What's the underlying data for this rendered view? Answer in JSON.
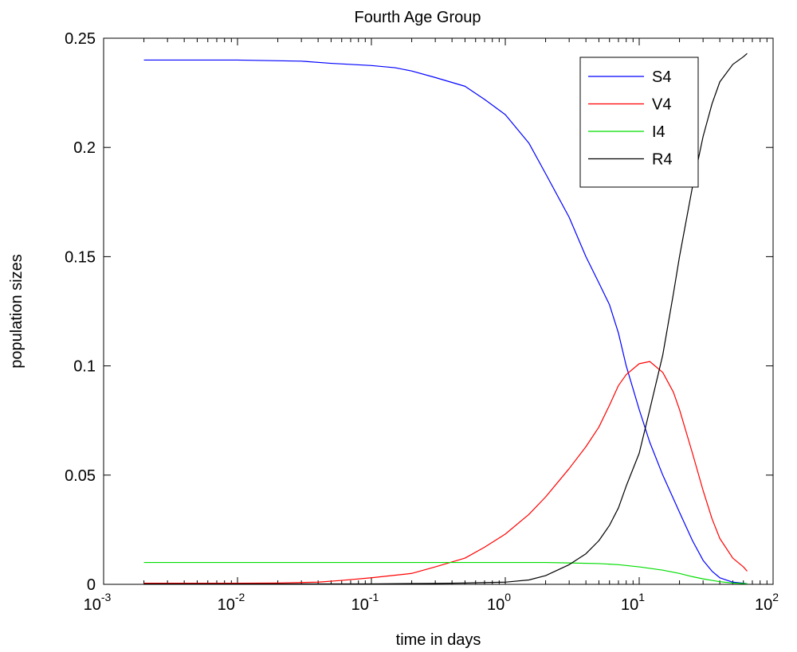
{
  "chart_data": {
    "type": "line",
    "title": "Fourth Age Group",
    "xlabel": "time in days",
    "ylabel": "population sizes",
    "xscale": "log",
    "xlim": [
      0.001,
      100
    ],
    "ylim": [
      0,
      0.25
    ],
    "x_ticks": [
      {
        "base": "10",
        "exp": "-3",
        "value": 0.001
      },
      {
        "base": "10",
        "exp": "-2",
        "value": 0.01
      },
      {
        "base": "10",
        "exp": "-1",
        "value": 0.1
      },
      {
        "base": "10",
        "exp": "0",
        "value": 1
      },
      {
        "base": "10",
        "exp": "1",
        "value": 10
      },
      {
        "base": "10",
        "exp": "2",
        "value": 100
      }
    ],
    "y_ticks": [
      {
        "label": "0",
        "value": 0
      },
      {
        "label": "0.05",
        "value": 0.05
      },
      {
        "label": "0.1",
        "value": 0.1
      },
      {
        "label": "0.15",
        "value": 0.15
      },
      {
        "label": "0.2",
        "value": 0.2
      },
      {
        "label": "0.25",
        "value": 0.25
      }
    ],
    "grid": false,
    "legend_position": "top-right",
    "series": [
      {
        "name": "S4",
        "color": "#0000ff",
        "points": [
          [
            0.002,
            0.24
          ],
          [
            0.01,
            0.24
          ],
          [
            0.03,
            0.2395
          ],
          [
            0.05,
            0.2385
          ],
          [
            0.1,
            0.2375
          ],
          [
            0.15,
            0.2365
          ],
          [
            0.2,
            0.235
          ],
          [
            0.3,
            0.232
          ],
          [
            0.5,
            0.228
          ],
          [
            0.7,
            0.222
          ],
          [
            1,
            0.215
          ],
          [
            1.5,
            0.202
          ],
          [
            2,
            0.188
          ],
          [
            3,
            0.168
          ],
          [
            4,
            0.15
          ],
          [
            5,
            0.138
          ],
          [
            6,
            0.128
          ],
          [
            7,
            0.115
          ],
          [
            8,
            0.1
          ],
          [
            10,
            0.08
          ],
          [
            12,
            0.065
          ],
          [
            15,
            0.05
          ],
          [
            20,
            0.033
          ],
          [
            25,
            0.02
          ],
          [
            30,
            0.011
          ],
          [
            35,
            0.006
          ],
          [
            40,
            0.003
          ],
          [
            50,
            0.001
          ],
          [
            60,
            0.0005
          ],
          [
            64,
            0.0003
          ]
        ]
      },
      {
        "name": "V4",
        "color": "#ff0000",
        "points": [
          [
            0.002,
            0.0005
          ],
          [
            0.01,
            0.0005
          ],
          [
            0.02,
            0.0006
          ],
          [
            0.04,
            0.001
          ],
          [
            0.06,
            0.0018
          ],
          [
            0.1,
            0.003
          ],
          [
            0.2,
            0.005
          ],
          [
            0.3,
            0.008
          ],
          [
            0.5,
            0.012
          ],
          [
            0.7,
            0.017
          ],
          [
            1,
            0.023
          ],
          [
            1.5,
            0.032
          ],
          [
            2,
            0.04
          ],
          [
            3,
            0.053
          ],
          [
            4,
            0.063
          ],
          [
            5,
            0.072
          ],
          [
            6,
            0.082
          ],
          [
            7,
            0.091
          ],
          [
            8,
            0.096
          ],
          [
            10,
            0.101
          ],
          [
            12,
            0.102
          ],
          [
            15,
            0.097
          ],
          [
            18,
            0.088
          ],
          [
            20,
            0.08
          ],
          [
            25,
            0.06
          ],
          [
            30,
            0.043
          ],
          [
            35,
            0.03
          ],
          [
            40,
            0.021
          ],
          [
            50,
            0.012
          ],
          [
            60,
            0.008
          ],
          [
            64,
            0.006
          ]
        ]
      },
      {
        "name": "I4",
        "color": "#00dd00",
        "points": [
          [
            0.002,
            0.01
          ],
          [
            0.1,
            0.01
          ],
          [
            0.5,
            0.01
          ],
          [
            1,
            0.01
          ],
          [
            2,
            0.01
          ],
          [
            3,
            0.0098
          ],
          [
            5,
            0.0095
          ],
          [
            7,
            0.009
          ],
          [
            10,
            0.008
          ],
          [
            15,
            0.0065
          ],
          [
            20,
            0.005
          ],
          [
            25,
            0.0035
          ],
          [
            30,
            0.0025
          ],
          [
            40,
            0.0012
          ],
          [
            50,
            0.0006
          ],
          [
            64,
            0.0003
          ]
        ]
      },
      {
        "name": "R4",
        "color": "#000000",
        "points": [
          [
            0.002,
            0.0002
          ],
          [
            0.1,
            0.0002
          ],
          [
            0.3,
            0.0004
          ],
          [
            0.5,
            0.0006
          ],
          [
            1,
            0.001
          ],
          [
            1.5,
            0.002
          ],
          [
            2,
            0.004
          ],
          [
            3,
            0.009
          ],
          [
            4,
            0.014
          ],
          [
            5,
            0.02
          ],
          [
            6,
            0.027
          ],
          [
            7,
            0.035
          ],
          [
            8,
            0.045
          ],
          [
            10,
            0.06
          ],
          [
            12,
            0.08
          ],
          [
            15,
            0.105
          ],
          [
            18,
            0.133
          ],
          [
            20,
            0.15
          ],
          [
            25,
            0.182
          ],
          [
            30,
            0.205
          ],
          [
            35,
            0.22
          ],
          [
            40,
            0.23
          ],
          [
            50,
            0.238
          ],
          [
            60,
            0.2415
          ],
          [
            64,
            0.243
          ]
        ]
      }
    ]
  }
}
